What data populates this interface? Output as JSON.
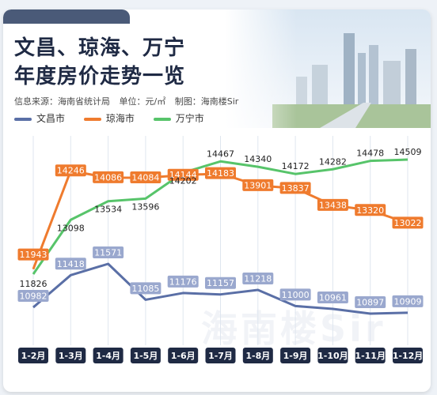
{
  "header": {
    "title_line1": "文昌、琼海、万宁",
    "title_line2": "年度房价走势一览",
    "source": "信息来源：海南省统计局",
    "unit": "单位：元/㎡",
    "producer": "制图：海南楼Sir"
  },
  "watermark": "海南楼Sir",
  "colors": {
    "wenchang": "#5a6fa6",
    "qionghai": "#ef7b2e",
    "wanning": "#57c46a",
    "navy": "#1f2a44"
  },
  "chart_data": {
    "type": "line",
    "categories": [
      "1-2月",
      "1-3月",
      "1-4月",
      "1-5月",
      "1-6月",
      "1-7月",
      "1-8月",
      "1-9月",
      "1-10月",
      "1-11月",
      "1-12月"
    ],
    "series": [
      {
        "name": "文昌市",
        "values": [
          10982,
          11418,
          11571,
          11085,
          11176,
          11157,
          11218,
          11000,
          10961,
          10897,
          10909
        ]
      },
      {
        "name": "琼海市",
        "values": [
          11943,
          14246,
          14086,
          14084,
          14144,
          14183,
          13901,
          13837,
          13438,
          13320,
          13022
        ]
      },
      {
        "name": "万宁市",
        "values": [
          11826,
          13098,
          13534,
          13596,
          14202,
          14467,
          14340,
          14172,
          14282,
          14478,
          14509
        ]
      }
    ]
  }
}
